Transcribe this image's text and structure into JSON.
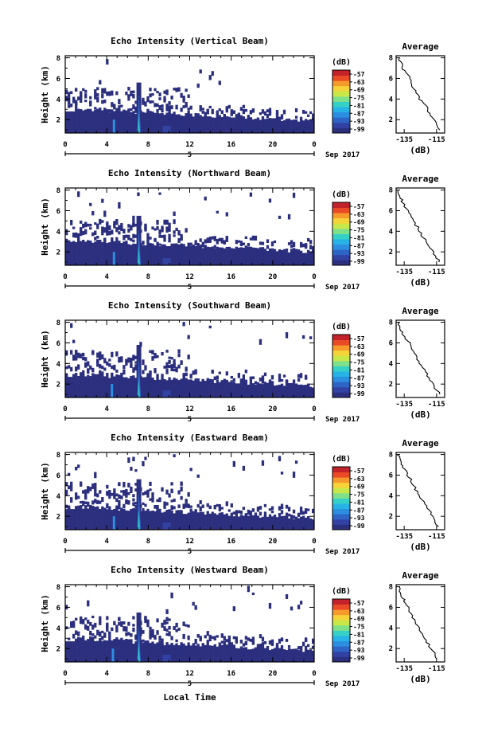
{
  "chart_data": [
    {
      "type": "heatmap",
      "title": "Echo Intensity (Vertical Beam)",
      "ylabel": "Height (km)",
      "xlabel": "",
      "x_ticks": [
        "0",
        "4",
        "8",
        "12",
        "16",
        "20",
        "0"
      ],
      "x_date": "5",
      "x_date_suffix": "Sep 2017",
      "xlim": [
        0,
        24
      ],
      "y_ticks": [
        "2",
        "4",
        "6",
        "8"
      ],
      "ylim": [
        0.7,
        8.2
      ],
      "colorbar": {
        "label": "(dB)",
        "ticks": [
          "-57",
          "-63",
          "-69",
          "-75",
          "-81",
          "-87",
          "-93",
          "-99"
        ]
      },
      "colormap": [
        "#2b2f7e",
        "#3242a3",
        "#2f64c7",
        "#2c8ee0",
        "#27b3e6",
        "#35d0c6",
        "#7fe08a",
        "#c8e84a",
        "#f5d43a",
        "#f79a2c",
        "#ea4a26",
        "#c2222a"
      ],
      "notes": {
        "echo_base_height_km": 3.1,
        "echo_top_height_km": 4.0,
        "spike_times_h": [
          4.7,
          7.1
        ],
        "spike_height_km": 5.6
      },
      "profile": {
        "title": "Average",
        "xlabel": "(dB)",
        "x_ticks": [
          "-135",
          "-115"
        ],
        "xlim": [
          -140,
          -110
        ],
        "y_ticks": [
          "2",
          "4",
          "6",
          "8"
        ],
        "ylim": [
          0.7,
          8.2
        ],
        "x": [
          -138.5,
          -137.5,
          -136.5,
          -136,
          -134,
          -132,
          -131,
          -130,
          -129,
          -127.5,
          -126,
          -124,
          -122,
          -120.5,
          -119,
          -117.5,
          -116,
          -114.5,
          -113
        ],
        "y": [
          8.0,
          7.6,
          7.2,
          6.9,
          6.6,
          6.2,
          5.8,
          5.4,
          5.0,
          4.6,
          4.2,
          3.8,
          3.4,
          3.0,
          2.6,
          2.2,
          1.8,
          1.4,
          1.0
        ]
      }
    },
    {
      "type": "heatmap",
      "title": "Echo Intensity (Northward Beam)",
      "ylabel": "Height (km)",
      "xlabel": "",
      "x_ticks": [
        "0",
        "4",
        "8",
        "12",
        "16",
        "20",
        "0"
      ],
      "x_date": "5",
      "x_date_suffix": "Sep 2017",
      "xlim": [
        0,
        24
      ],
      "y_ticks": [
        "2",
        "4",
        "6",
        "8"
      ],
      "ylim": [
        0.7,
        8.2
      ],
      "colorbar": {
        "label": "(dB)",
        "ticks": [
          "-57",
          "-63",
          "-69",
          "-75",
          "-81",
          "-87",
          "-93",
          "-99"
        ]
      },
      "colormap": [
        "#2b2f7e",
        "#3242a3",
        "#2f64c7",
        "#2c8ee0",
        "#27b3e6",
        "#35d0c6",
        "#7fe08a",
        "#c8e84a",
        "#f5d43a",
        "#f79a2c",
        "#ea4a26",
        "#c2222a"
      ],
      "notes": {
        "echo_base_height_km": 3.2,
        "echo_top_height_km": 4.0,
        "spike_times_h": [
          4.7,
          7.1
        ],
        "spike_height_km": 5.5
      },
      "profile": {
        "title": "Average",
        "xlabel": "(dB)",
        "x_ticks": [
          "-135",
          "-115"
        ],
        "xlim": [
          -140,
          -110
        ],
        "y_ticks": [
          "2",
          "4",
          "6",
          "8"
        ],
        "ylim": [
          0.7,
          8.2
        ],
        "x": [
          -139,
          -138,
          -137,
          -136.5,
          -135,
          -133.5,
          -132,
          -131,
          -129.5,
          -128,
          -126,
          -124.5,
          -123,
          -121,
          -119.5,
          -118,
          -116.5,
          -115,
          -113.5
        ],
        "y": [
          8.0,
          7.6,
          7.2,
          6.9,
          6.6,
          6.2,
          5.8,
          5.4,
          5.0,
          4.6,
          4.2,
          3.8,
          3.4,
          3.0,
          2.6,
          2.2,
          1.8,
          1.4,
          1.0
        ]
      }
    },
    {
      "type": "heatmap",
      "title": "Echo Intensity (Southward Beam)",
      "ylabel": "Height (km)",
      "xlabel": "",
      "x_ticks": [
        "0",
        "4",
        "8",
        "12",
        "16",
        "20",
        "0"
      ],
      "x_date": "5",
      "x_date_suffix": "Sep 2017",
      "xlim": [
        0,
        24
      ],
      "y_ticks": [
        "2",
        "4",
        "6",
        "8"
      ],
      "ylim": [
        0.7,
        8.2
      ],
      "colorbar": {
        "label": "(dB)",
        "ticks": [
          "-57",
          "-63",
          "-69",
          "-75",
          "-81",
          "-87",
          "-93",
          "-99"
        ]
      },
      "colormap": [
        "#2b2f7e",
        "#3242a3",
        "#2f64c7",
        "#2c8ee0",
        "#27b3e6",
        "#35d0c6",
        "#7fe08a",
        "#c8e84a",
        "#f5d43a",
        "#f79a2c",
        "#ea4a26",
        "#c2222a"
      ],
      "notes": {
        "echo_base_height_km": 3.0,
        "echo_top_height_km": 4.2,
        "spike_times_h": [
          4.5,
          7.1
        ],
        "spike_height_km": 5.8
      },
      "profile": {
        "title": "Average",
        "xlabel": "(dB)",
        "x_ticks": [
          "-135",
          "-115"
        ],
        "xlim": [
          -140,
          -110
        ],
        "y_ticks": [
          "2",
          "4",
          "6",
          "8"
        ],
        "ylim": [
          0.7,
          8.2
        ],
        "x": [
          -138.5,
          -137.5,
          -137,
          -136,
          -134.5,
          -133,
          -131.5,
          -130.5,
          -129,
          -127.5,
          -126,
          -124,
          -122.5,
          -121,
          -119.5,
          -118,
          -116.5,
          -115,
          -113.5
        ],
        "y": [
          8.0,
          7.6,
          7.2,
          6.9,
          6.6,
          6.2,
          5.8,
          5.4,
          5.0,
          4.6,
          4.2,
          3.8,
          3.4,
          3.0,
          2.6,
          2.2,
          1.8,
          1.4,
          1.0
        ]
      }
    },
    {
      "type": "heatmap",
      "title": "Echo Intensity (Eastward Beam)",
      "ylabel": "Height (km)",
      "xlabel": "",
      "x_ticks": [
        "0",
        "4",
        "8",
        "12",
        "16",
        "20",
        "0"
      ],
      "x_date": "5",
      "x_date_suffix": "Sep 2017",
      "xlim": [
        0,
        24
      ],
      "y_ticks": [
        "2",
        "4",
        "6",
        "8"
      ],
      "ylim": [
        0.7,
        8.2
      ],
      "colorbar": {
        "label": "(dB)",
        "ticks": [
          "-57",
          "-63",
          "-69",
          "-75",
          "-81",
          "-87",
          "-93",
          "-99"
        ]
      },
      "colormap": [
        "#2b2f7e",
        "#3242a3",
        "#2f64c7",
        "#2c8ee0",
        "#27b3e6",
        "#35d0c6",
        "#7fe08a",
        "#c8e84a",
        "#f5d43a",
        "#f79a2c",
        "#ea4a26",
        "#c2222a"
      ],
      "notes": {
        "echo_base_height_km": 3.0,
        "echo_top_height_km": 4.2,
        "spike_times_h": [
          4.7,
          7.1
        ],
        "spike_height_km": 5.6
      },
      "profile": {
        "title": "Average",
        "xlabel": "(dB)",
        "x_ticks": [
          "-135",
          "-115"
        ],
        "xlim": [
          -140,
          -110
        ],
        "y_ticks": [
          "2",
          "4",
          "6",
          "8"
        ],
        "ylim": [
          0.7,
          8.2
        ],
        "x": [
          -139,
          -138,
          -137,
          -136,
          -134.5,
          -133,
          -132,
          -131,
          -129.5,
          -128,
          -126.5,
          -125,
          -123,
          -121.5,
          -120,
          -118.5,
          -117,
          -115.5,
          -114
        ],
        "y": [
          8.0,
          7.6,
          7.2,
          6.9,
          6.6,
          6.2,
          5.8,
          5.4,
          5.0,
          4.6,
          4.2,
          3.8,
          3.4,
          3.0,
          2.6,
          2.2,
          1.8,
          1.4,
          1.0
        ]
      }
    },
    {
      "type": "heatmap",
      "title": "Echo Intensity (Westward Beam)",
      "ylabel": "Height (km)",
      "xlabel": "Local Time",
      "x_ticks": [
        "0",
        "4",
        "8",
        "12",
        "16",
        "20",
        "0"
      ],
      "x_date": "5",
      "x_date_suffix": "Sep 2017",
      "xlim": [
        0,
        24
      ],
      "y_ticks": [
        "2",
        "4",
        "6",
        "8"
      ],
      "ylim": [
        0.7,
        8.2
      ],
      "colorbar": {
        "label": "(dB)",
        "ticks": [
          "-57",
          "-63",
          "-69",
          "-75",
          "-81",
          "-87",
          "-93",
          "-99"
        ]
      },
      "colormap": [
        "#2b2f7e",
        "#3242a3",
        "#2f64c7",
        "#2c8ee0",
        "#27b3e6",
        "#35d0c6",
        "#7fe08a",
        "#c8e84a",
        "#f5d43a",
        "#f79a2c",
        "#ea4a26",
        "#c2222a"
      ],
      "notes": {
        "echo_base_height_km": 3.0,
        "echo_top_height_km": 4.0,
        "spike_times_h": [
          4.6,
          7.1
        ],
        "spike_height_km": 5.5
      },
      "profile": {
        "title": "Average",
        "xlabel": "(dB)",
        "x_ticks": [
          "-135",
          "-115"
        ],
        "xlim": [
          -140,
          -110
        ],
        "y_ticks": [
          "2",
          "4",
          "6",
          "8"
        ],
        "ylim": [
          0.7,
          8.2
        ],
        "x": [
          -138.5,
          -138,
          -137,
          -136,
          -135,
          -133.5,
          -132.5,
          -131,
          -130,
          -128.5,
          -127,
          -125.5,
          -124,
          -122.5,
          -121,
          -119.5,
          -118,
          -116,
          -114.5
        ],
        "y": [
          8.0,
          7.6,
          7.2,
          6.9,
          6.6,
          6.2,
          5.8,
          5.4,
          5.0,
          4.6,
          4.2,
          3.8,
          3.4,
          3.0,
          2.6,
          2.2,
          1.8,
          1.4,
          1.0
        ]
      }
    }
  ]
}
